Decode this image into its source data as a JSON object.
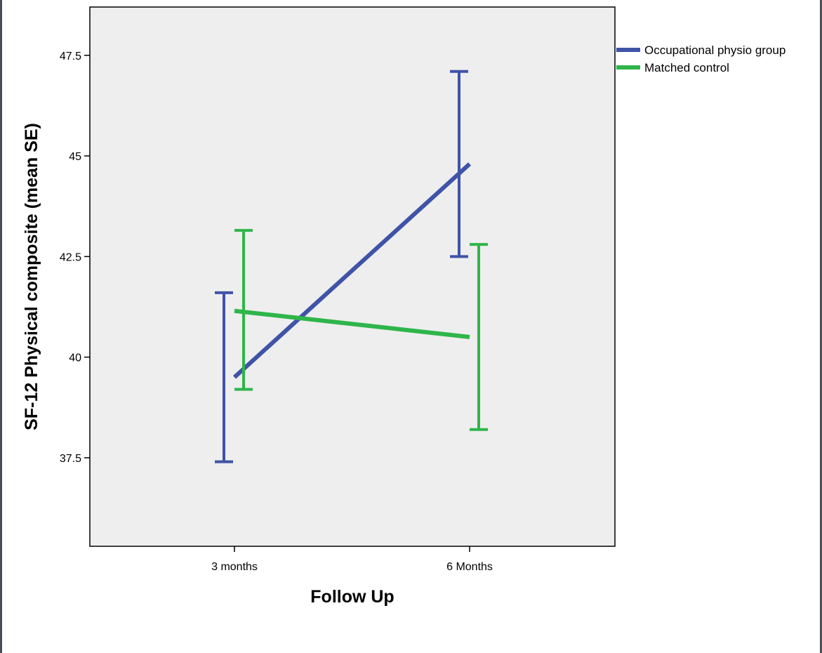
{
  "chart_data": {
    "type": "line",
    "title": "",
    "xlabel": "Follow Up",
    "ylabel": "SF-12 Physical composite (mean SE)",
    "categories": [
      "3 months",
      "6 Months"
    ],
    "ylim": [
      35.3,
      48.7
    ],
    "yticks": [
      "37.5",
      "40",
      "42.5",
      "45",
      "47.5"
    ],
    "grid": false,
    "legend_position": "top-right outside plot",
    "plot_background": "#eeeeee",
    "series": [
      {
        "name": "Occupational physio group",
        "color": "#3f53a8",
        "values": [
          39.5,
          44.8
        ],
        "error_low": [
          37.4,
          42.5
        ],
        "error_high": [
          41.6,
          47.1
        ]
      },
      {
        "name": "Matched control",
        "color": "#2fb54a",
        "values": [
          41.15,
          40.5
        ],
        "error_low": [
          39.2,
          38.2
        ],
        "error_high": [
          43.15,
          42.8
        ]
      }
    ]
  }
}
